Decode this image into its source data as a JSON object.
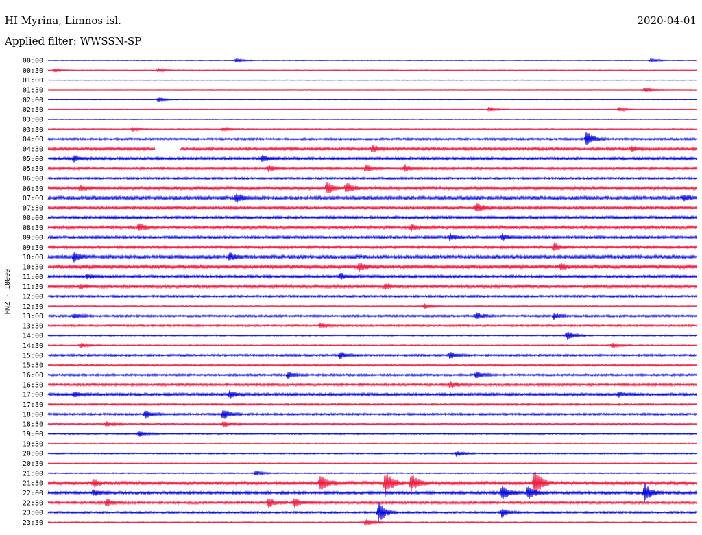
{
  "header": {
    "station": "HI Myrina, Limnos isl.",
    "filter": "Applied filter: WWSSN-SP",
    "date": "2020-04-01"
  },
  "colors": {
    "odd_trace": "#0000e0",
    "even_trace": "#f0143c",
    "text": "#000000",
    "background": "#ffffff"
  },
  "chart_data": {
    "type": "line",
    "title": "HI Myrina, Limnos isl.",
    "subtitle": "Applied filter: WWSSN-SP",
    "ylabel": "HNZ - 10000",
    "xlabel": "",
    "grid": false,
    "legend": "none",
    "row_labels": [
      "00:00",
      "00:30",
      "01:00",
      "01:30",
      "02:00",
      "02:30",
      "03:00",
      "03:30",
      "04:00",
      "04:30",
      "05:00",
      "05:30",
      "06:00",
      "06:30",
      "07:00",
      "07:30",
      "08:00",
      "08:30",
      "09:00",
      "09:30",
      "10:00",
      "10:30",
      "11:00",
      "11:30",
      "12:00",
      "12:30",
      "13:00",
      "13:30",
      "14:00",
      "14:30",
      "15:00",
      "15:30",
      "16:00",
      "16:30",
      "17:00",
      "17:30",
      "18:00",
      "18:30",
      "19:00",
      "19:30",
      "20:00",
      "20:30",
      "21:00",
      "21:30",
      "22:00",
      "22:30",
      "23:00",
      "23:30"
    ],
    "row_colors": [
      "blue",
      "red"
    ],
    "noise_level": [
      0.6,
      0.6,
      0.4,
      0.4,
      0.4,
      0.5,
      0.5,
      0.8,
      1.5,
      2.0,
      2.0,
      2.0,
      1.5,
      2.5,
      2.5,
      2.0,
      2.0,
      2.5,
      2.0,
      2.0,
      2.5,
      2.5,
      2.0,
      2.5,
      1.5,
      1.0,
      1.5,
      1.5,
      1.0,
      1.0,
      1.5,
      1.5,
      1.5,
      2.0,
      2.0,
      1.5,
      1.5,
      1.5,
      1.0,
      0.8,
      1.0,
      0.8,
      0.8,
      2.5,
      2.0,
      2.0,
      1.5,
      1.0
    ],
    "events": [
      {
        "row": 0,
        "x": 0.29,
        "amp": 3
      },
      {
        "row": 0,
        "x": 0.93,
        "amp": 3
      },
      {
        "row": 1,
        "x": 0.01,
        "amp": 3
      },
      {
        "row": 1,
        "x": 0.17,
        "amp": 3
      },
      {
        "row": 3,
        "x": 0.92,
        "amp": 4
      },
      {
        "row": 4,
        "x": 0.17,
        "amp": 4
      },
      {
        "row": 5,
        "x": 0.68,
        "amp": 4
      },
      {
        "row": 5,
        "x": 0.88,
        "amp": 4
      },
      {
        "row": 7,
        "x": 0.13,
        "amp": 3
      },
      {
        "row": 7,
        "x": 0.27,
        "amp": 3
      },
      {
        "row": 8,
        "x": 0.83,
        "amp": 12
      },
      {
        "row": 9,
        "x": 0.5,
        "amp": 5
      },
      {
        "row": 9,
        "x": 0.9,
        "amp": 4
      },
      {
        "row": 10,
        "x": 0.04,
        "amp": 5
      },
      {
        "row": 10,
        "x": 0.33,
        "amp": 5
      },
      {
        "row": 11,
        "x": 0.34,
        "amp": 5
      },
      {
        "row": 11,
        "x": 0.49,
        "amp": 5
      },
      {
        "row": 11,
        "x": 0.55,
        "amp": 5
      },
      {
        "row": 13,
        "x": 0.05,
        "amp": 4
      },
      {
        "row": 13,
        "x": 0.43,
        "amp": 9
      },
      {
        "row": 13,
        "x": 0.46,
        "amp": 8
      },
      {
        "row": 14,
        "x": 0.29,
        "amp": 6
      },
      {
        "row": 14,
        "x": 0.98,
        "amp": 4
      },
      {
        "row": 15,
        "x": 0.66,
        "amp": 8
      },
      {
        "row": 17,
        "x": 0.14,
        "amp": 5
      },
      {
        "row": 17,
        "x": 0.56,
        "amp": 5
      },
      {
        "row": 18,
        "x": 0.62,
        "amp": 5
      },
      {
        "row": 18,
        "x": 0.7,
        "amp": 5
      },
      {
        "row": 19,
        "x": 0.78,
        "amp": 6
      },
      {
        "row": 20,
        "x": 0.04,
        "amp": 7
      },
      {
        "row": 20,
        "x": 0.28,
        "amp": 5
      },
      {
        "row": 21,
        "x": 0.48,
        "amp": 6
      },
      {
        "row": 21,
        "x": 0.79,
        "amp": 5
      },
      {
        "row": 22,
        "x": 0.06,
        "amp": 4
      },
      {
        "row": 22,
        "x": 0.45,
        "amp": 5
      },
      {
        "row": 23,
        "x": 0.05,
        "amp": 4
      },
      {
        "row": 23,
        "x": 0.52,
        "amp": 4
      },
      {
        "row": 25,
        "x": 0.58,
        "amp": 4
      },
      {
        "row": 26,
        "x": 0.04,
        "amp": 4
      },
      {
        "row": 26,
        "x": 0.66,
        "amp": 5
      },
      {
        "row": 26,
        "x": 0.78,
        "amp": 4
      },
      {
        "row": 27,
        "x": 0.42,
        "amp": 4
      },
      {
        "row": 28,
        "x": 0.8,
        "amp": 7
      },
      {
        "row": 29,
        "x": 0.05,
        "amp": 4
      },
      {
        "row": 29,
        "x": 0.87,
        "amp": 4
      },
      {
        "row": 30,
        "x": 0.45,
        "amp": 5
      },
      {
        "row": 30,
        "x": 0.62,
        "amp": 5
      },
      {
        "row": 32,
        "x": 0.37,
        "amp": 5
      },
      {
        "row": 32,
        "x": 0.66,
        "amp": 5
      },
      {
        "row": 33,
        "x": 0.62,
        "amp": 5
      },
      {
        "row": 34,
        "x": 0.04,
        "amp": 4
      },
      {
        "row": 34,
        "x": 0.28,
        "amp": 5
      },
      {
        "row": 34,
        "x": 0.88,
        "amp": 4
      },
      {
        "row": 36,
        "x": 0.15,
        "amp": 6
      },
      {
        "row": 36,
        "x": 0.27,
        "amp": 9
      },
      {
        "row": 37,
        "x": 0.09,
        "amp": 4
      },
      {
        "row": 37,
        "x": 0.27,
        "amp": 5
      },
      {
        "row": 38,
        "x": 0.14,
        "amp": 4
      },
      {
        "row": 40,
        "x": 0.63,
        "amp": 4
      },
      {
        "row": 42,
        "x": 0.32,
        "amp": 4
      },
      {
        "row": 43,
        "x": 0.07,
        "amp": 5
      },
      {
        "row": 43,
        "x": 0.42,
        "amp": 14
      },
      {
        "row": 43,
        "x": 0.52,
        "amp": 18
      },
      {
        "row": 43,
        "x": 0.56,
        "amp": 14
      },
      {
        "row": 43,
        "x": 0.75,
        "amp": 22
      },
      {
        "row": 44,
        "x": 0.07,
        "amp": 4
      },
      {
        "row": 44,
        "x": 0.7,
        "amp": 12
      },
      {
        "row": 44,
        "x": 0.74,
        "amp": 10
      },
      {
        "row": 44,
        "x": 0.92,
        "amp": 14
      },
      {
        "row": 45,
        "x": 0.09,
        "amp": 6
      },
      {
        "row": 45,
        "x": 0.34,
        "amp": 7
      },
      {
        "row": 45,
        "x": 0.38,
        "amp": 8
      },
      {
        "row": 46,
        "x": 0.51,
        "amp": 16
      },
      {
        "row": 46,
        "x": 0.7,
        "amp": 8
      },
      {
        "row": 47,
        "x": 0.49,
        "amp": 6
      }
    ],
    "gap": {
      "row": 9,
      "x_start": 0.165,
      "x_end": 0.205
    }
  }
}
